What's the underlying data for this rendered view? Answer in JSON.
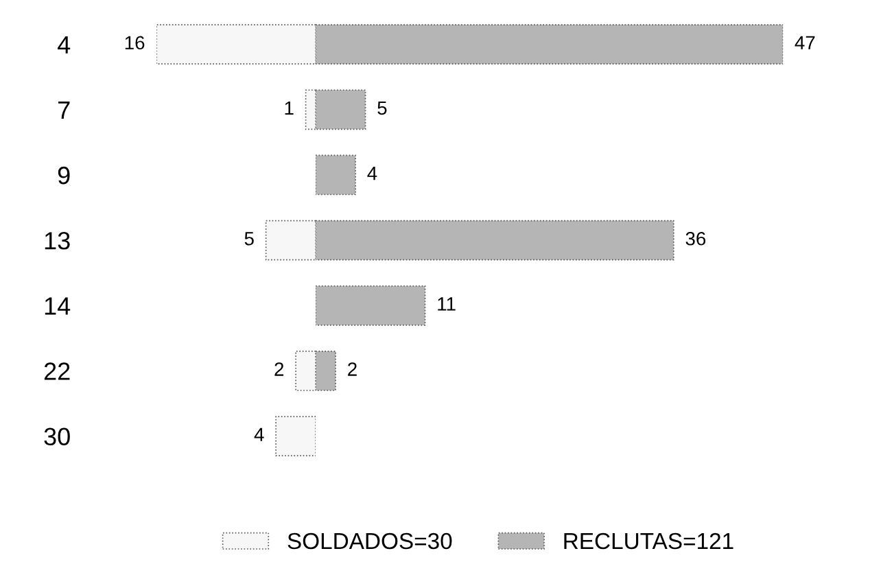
{
  "chart_data": [
    {
      "type": "bar",
      "orientation": "horizontal",
      "categories": [
        "4",
        "7",
        "9",
        "13",
        "14",
        "22",
        "30"
      ],
      "xlim": [
        16,
        0
      ],
      "series": [
        {
          "name": "SOLDADOS=30",
          "color": "#f7f7f7",
          "values": [
            16,
            1,
            null,
            5,
            null,
            2,
            4
          ]
        }
      ],
      "data_labels": true,
      "tick_labels": "y",
      "grid": false,
      "legend": "bottom"
    },
    {
      "type": "bar",
      "orientation": "horizontal",
      "categories": [
        "4",
        "7",
        "9",
        "13",
        "14",
        "22",
        "30"
      ],
      "xlim": [
        0,
        47
      ],
      "series": [
        {
          "name": "RECLUTAS=121",
          "color": "#b5b5b5",
          "values": [
            47,
            5,
            4,
            36,
            11,
            2,
            null
          ]
        }
      ],
      "data_labels": true,
      "tick_labels": false,
      "grid": false,
      "legend": "bottom"
    }
  ]
}
